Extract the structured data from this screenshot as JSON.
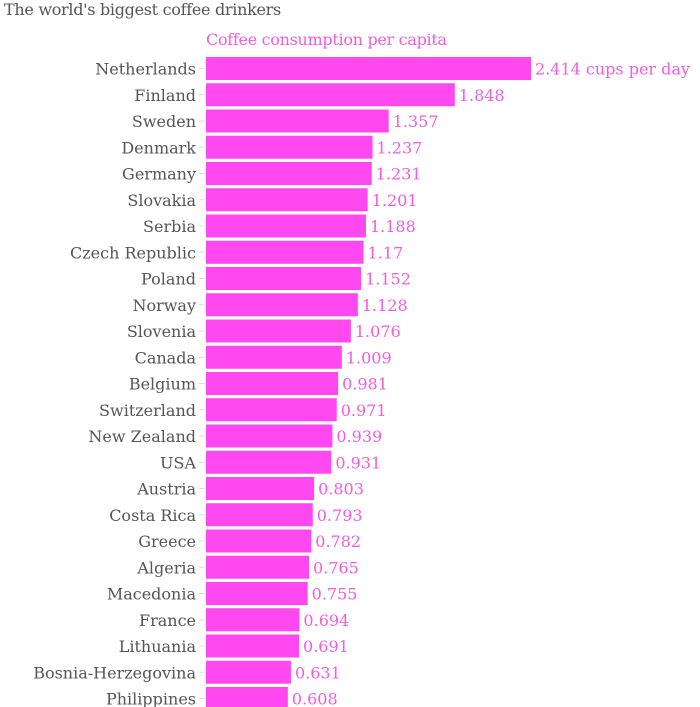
{
  "chart_data": {
    "type": "bar",
    "orientation": "horizontal",
    "title": "The world's biggest coffee drinkers",
    "subtitle": "Coffee consumption per capita",
    "value_suffix_first": " cups per day",
    "bar_color": "#ff48ef",
    "label_color": "#f25ce0",
    "categories": [
      "Netherlands",
      "Finland",
      "Sweden",
      "Denmark",
      "Germany",
      "Slovakia",
      "Serbia",
      "Czech Republic",
      "Poland",
      "Norway",
      "Slovenia",
      "Canada",
      "Belgium",
      "Switzerland",
      "New Zealand",
      "USA",
      "Austria",
      "Costa Rica",
      "Greece",
      "Algeria",
      "Macedonia",
      "France",
      "Lithuania",
      "Bosnia-Herzegovina",
      "Philippines"
    ],
    "values": [
      2.414,
      1.848,
      1.357,
      1.237,
      1.231,
      1.201,
      1.188,
      1.17,
      1.152,
      1.128,
      1.076,
      1.009,
      0.981,
      0.971,
      0.939,
      0.931,
      0.803,
      0.793,
      0.782,
      0.765,
      0.755,
      0.694,
      0.691,
      0.631,
      0.608
    ],
    "value_labels": [
      "2.414 cups per day",
      "1.848",
      "1.357",
      "1.237",
      "1.231",
      "1.201",
      "1.188",
      "1.17",
      "1.152",
      "1.128",
      "1.076",
      "1.009",
      "0.981",
      "0.971",
      "0.939",
      "0.931",
      "0.803",
      "0.793",
      "0.782",
      "0.765",
      "0.755",
      "0.694",
      "0.691",
      "0.631",
      "0.608"
    ],
    "xlim": [
      0,
      2.414
    ]
  }
}
